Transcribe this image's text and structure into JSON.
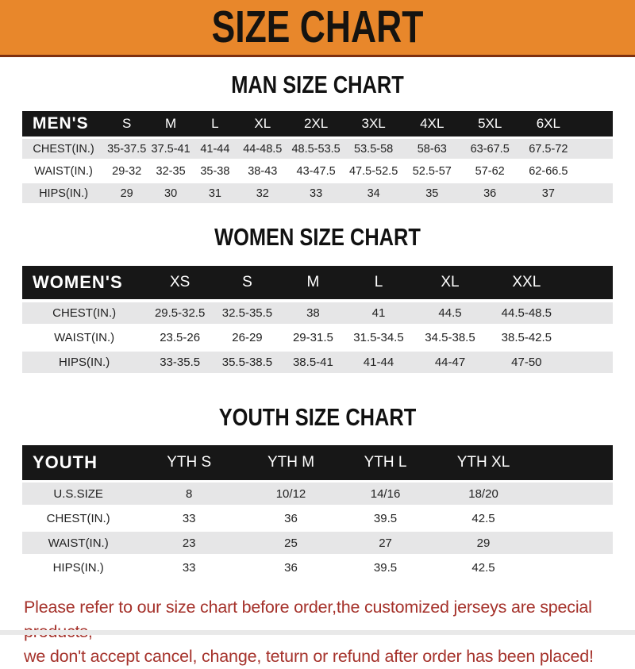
{
  "banner": {
    "title": "SIZE CHART"
  },
  "colors": {
    "banner_bg": "#E8872B",
    "banner_edge": "#7E3010",
    "header_bar": "#171717",
    "row_alt": "#E6E6E7",
    "notice_text": "#A5322B"
  },
  "sections": [
    {
      "id": "men",
      "heading": "MAN SIZE CHART",
      "corner_label": "MEN'S",
      "columns": [
        "S",
        "M",
        "L",
        "XL",
        "2XL",
        "3XL",
        "4XL",
        "5XL",
        "6XL"
      ],
      "rows": [
        {
          "label": "CHEST(IN.)",
          "values": [
            "35-37.5",
            "37.5-41",
            "41-44",
            "44-48.5",
            "48.5-53.5",
            "53.5-58",
            "58-63",
            "63-67.5",
            "67.5-72"
          ]
        },
        {
          "label": "WAIST(IN.)",
          "values": [
            "29-32",
            "32-35",
            "35-38",
            "38-43",
            "43-47.5",
            "47.5-52.5",
            "52.5-57",
            "57-62",
            "62-66.5"
          ]
        },
        {
          "label": "HIPS(IN.)",
          "values": [
            "29",
            "30",
            "31",
            "32",
            "33",
            "34",
            "35",
            "36",
            "37"
          ]
        }
      ]
    },
    {
      "id": "women",
      "heading": "WOMEN SIZE CHART",
      "corner_label": "WOMEN'S",
      "columns": [
        "XS",
        "S",
        "M",
        "L",
        "XL",
        "XXL"
      ],
      "rows": [
        {
          "label": "CHEST(IN.)",
          "values": [
            "29.5-32.5",
            "32.5-35.5",
            "38",
            "41",
            "44.5",
            "44.5-48.5"
          ]
        },
        {
          "label": "WAIST(IN.)",
          "values": [
            "23.5-26",
            "26-29",
            "29-31.5",
            "31.5-34.5",
            "34.5-38.5",
            "38.5-42.5"
          ]
        },
        {
          "label": "HIPS(IN.)",
          "values": [
            "33-35.5",
            "35.5-38.5",
            "38.5-41",
            "41-44",
            "44-47",
            "47-50"
          ]
        }
      ]
    },
    {
      "id": "youth",
      "heading": "YOUTH SIZE CHART",
      "corner_label": "YOUTH",
      "columns": [
        "YTH S",
        "YTH M",
        "YTH L",
        "YTH XL"
      ],
      "rows": [
        {
          "label": "U.S.SIZE",
          "values": [
            "8",
            "10/12",
            "14/16",
            "18/20"
          ]
        },
        {
          "label": "CHEST(IN.)",
          "values": [
            "33",
            "36",
            "39.5",
            "42.5"
          ]
        },
        {
          "label": "WAIST(IN.)",
          "values": [
            "23",
            "25",
            "27",
            "29"
          ]
        },
        {
          "label": "HIPS(IN.)",
          "values": [
            "33",
            "36",
            "39.5",
            "42.5"
          ]
        }
      ]
    }
  ],
  "footer": {
    "lines": [
      "Please refer to our size chart before order,the customized jerseys are special products,",
      "we don't accept cancel, change, teturn or refund after order has been placed!"
    ]
  },
  "chart_data": [
    {
      "type": "table",
      "title": "MAN SIZE CHART",
      "categories": [
        "S",
        "M",
        "L",
        "XL",
        "2XL",
        "3XL",
        "4XL",
        "5XL",
        "6XL"
      ],
      "series": [
        {
          "name": "CHEST(IN.)",
          "values": [
            "35-37.5",
            "37.5-41",
            "41-44",
            "44-48.5",
            "48.5-53.5",
            "53.5-58",
            "58-63",
            "63-67.5",
            "67.5-72"
          ]
        },
        {
          "name": "WAIST(IN.)",
          "values": [
            "29-32",
            "32-35",
            "35-38",
            "38-43",
            "43-47.5",
            "47.5-52.5",
            "52.5-57",
            "57-62",
            "62-66.5"
          ]
        },
        {
          "name": "HIPS(IN.)",
          "values": [
            29,
            30,
            31,
            32,
            33,
            34,
            35,
            36,
            37
          ]
        }
      ]
    },
    {
      "type": "table",
      "title": "WOMEN SIZE CHART",
      "categories": [
        "XS",
        "S",
        "M",
        "L",
        "XL",
        "XXL"
      ],
      "series": [
        {
          "name": "CHEST(IN.)",
          "values": [
            "29.5-32.5",
            "32.5-35.5",
            "38",
            "41",
            "44.5",
            "44.5-48.5"
          ]
        },
        {
          "name": "WAIST(IN.)",
          "values": [
            "23.5-26",
            "26-29",
            "29-31.5",
            "31.5-34.5",
            "34.5-38.5",
            "38.5-42.5"
          ]
        },
        {
          "name": "HIPS(IN.)",
          "values": [
            "33-35.5",
            "35.5-38.5",
            "38.5-41",
            "41-44",
            "44-47",
            "47-50"
          ]
        }
      ]
    },
    {
      "type": "table",
      "title": "YOUTH SIZE CHART",
      "categories": [
        "YTH S",
        "YTH M",
        "YTH L",
        "YTH XL"
      ],
      "series": [
        {
          "name": "U.S.SIZE",
          "values": [
            "8",
            "10/12",
            "14/16",
            "18/20"
          ]
        },
        {
          "name": "CHEST(IN.)",
          "values": [
            33,
            36,
            39.5,
            42.5
          ]
        },
        {
          "name": "WAIST(IN.)",
          "values": [
            23,
            25,
            27,
            29
          ]
        },
        {
          "name": "HIPS(IN.)",
          "values": [
            33,
            36,
            39.5,
            42.5
          ]
        }
      ]
    }
  ]
}
